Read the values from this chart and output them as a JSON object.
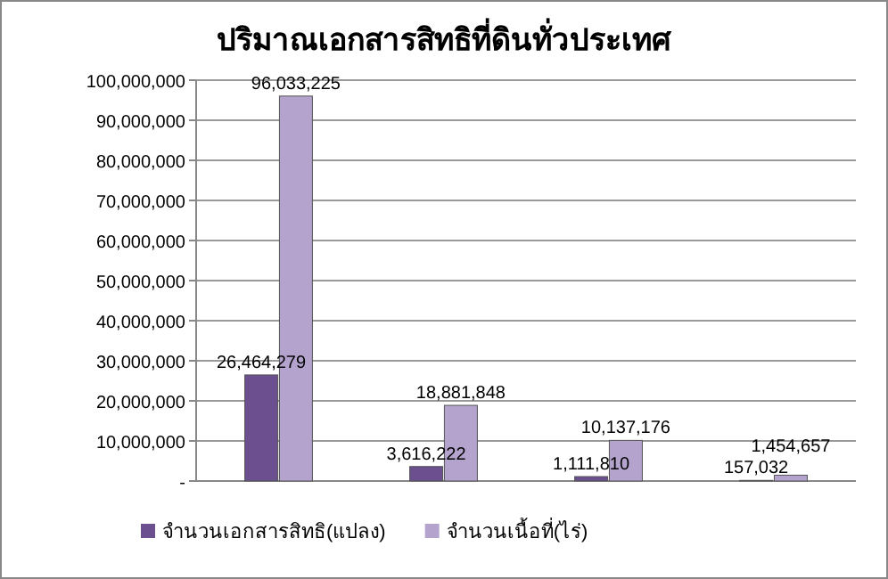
{
  "chart_data": {
    "type": "bar",
    "title": "ปริมาณเอกสารสิทธิที่ดินทั่วประเทศ",
    "categories": [
      null,
      null,
      null,
      null
    ],
    "series": [
      {
        "name": "จำนวนเอกสารสิทธิ(แปลง)",
        "color": "#6b4f8f",
        "values": [
          26464279,
          3616222,
          1111810,
          157032
        ],
        "value_labels": [
          "26,464,279",
          "3,616,222",
          "1,111,810",
          "157,032"
        ]
      },
      {
        "name": "จำนวนเนื้อที่(ไร่)",
        "color": "#b3a3cd",
        "values": [
          96033225,
          18881848,
          10137176,
          1454657
        ],
        "value_labels": [
          "96,033,225",
          "18,881,848",
          "10,137,176",
          "1,454,657"
        ]
      }
    ],
    "ylim": [
      0,
      100000000
    ],
    "yticks": [
      {
        "value": 0,
        "label": "-"
      },
      {
        "value": 10000000,
        "label": "10,000,000"
      },
      {
        "value": 20000000,
        "label": "20,000,000"
      },
      {
        "value": 30000000,
        "label": "30,000,000"
      },
      {
        "value": 40000000,
        "label": "40,000,000"
      },
      {
        "value": 50000000,
        "label": "50,000,000"
      },
      {
        "value": 60000000,
        "label": "60,000,000"
      },
      {
        "value": 70000000,
        "label": "70,000,000"
      },
      {
        "value": 80000000,
        "label": "80,000,000"
      },
      {
        "value": 90000000,
        "label": "90,000,000"
      },
      {
        "value": 100000000,
        "label": "100,000,000"
      }
    ],
    "grid": "y",
    "legend": "bottom"
  }
}
